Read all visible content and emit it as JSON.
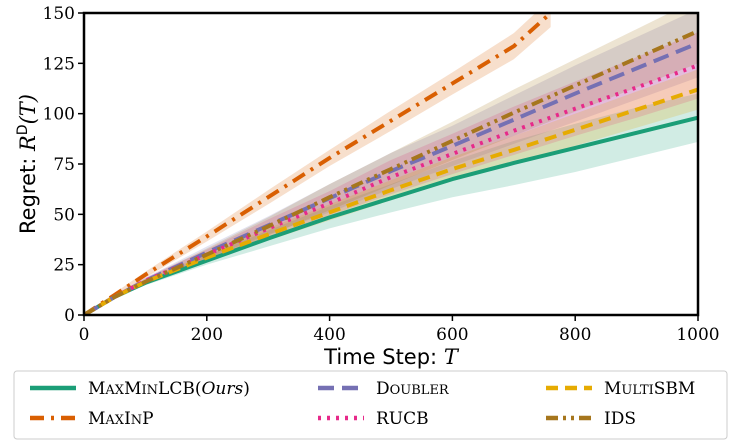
{
  "chart_data": {
    "type": "line",
    "title": "",
    "xlabel": "Time Step: ",
    "xlabel_var": "T",
    "ylabel": "Regret: ",
    "ylabel_var": "R^D(T)",
    "xlim": [
      0,
      1000
    ],
    "ylim": [
      0,
      150
    ],
    "xticks": [
      0,
      200,
      400,
      600,
      800,
      1000
    ],
    "yticks": [
      0,
      25,
      50,
      75,
      100,
      125,
      150
    ],
    "grid": false,
    "legend_position": "below",
    "series": [
      {
        "name": "MaxMinLCB(Ours)",
        "color": "#1b9e77",
        "dash": "solid",
        "x": [
          0,
          50,
          100,
          200,
          300,
          400,
          500,
          600,
          700,
          800,
          900,
          1000
        ],
        "y": [
          0,
          9,
          16,
          27,
          38,
          48.5,
          58,
          67.5,
          75.5,
          83,
          90.5,
          98
        ],
        "band": [
          [
            0,
            0
          ],
          [
            8.3,
            9.7
          ],
          [
            14.8,
            17.2
          ],
          [
            25,
            29.5
          ],
          [
            34,
            42
          ],
          [
            43,
            54
          ],
          [
            51,
            65
          ],
          [
            58.5,
            76.5
          ],
          [
            64.5,
            86.5
          ],
          [
            71,
            95
          ],
          [
            78.5,
            103
          ],
          [
            86,
            110
          ]
        ]
      },
      {
        "name": "MaxInP",
        "color": "#d95f02",
        "dash": "dashdot",
        "x": [
          0,
          50,
          100,
          200,
          300,
          400,
          500,
          600,
          700,
          760
        ],
        "y": [
          0,
          10,
          20,
          39,
          58.5,
          78,
          96.5,
          115,
          133.5,
          150
        ],
        "band": [
          [
            0,
            0
          ],
          [
            9,
            11
          ],
          [
            18.5,
            21.5
          ],
          [
            36.5,
            41.5
          ],
          [
            55,
            62
          ],
          [
            74,
            82
          ],
          [
            91.5,
            101.5
          ],
          [
            109.5,
            120.5
          ],
          [
            127,
            140
          ],
          [
            143,
            157
          ]
        ]
      },
      {
        "name": "Doubler",
        "color": "#7570b3",
        "dash": "longdash",
        "x": [
          0,
          50,
          100,
          200,
          300,
          400,
          500,
          600,
          700,
          800,
          900,
          1000
        ],
        "y": [
          0,
          9,
          17,
          31,
          44.5,
          58,
          71.5,
          84,
          97,
          110,
          122.5,
          135
        ],
        "band": [
          [
            0,
            0
          ],
          [
            8,
            10
          ],
          [
            15.5,
            18.5
          ],
          [
            28,
            34
          ],
          [
            40,
            49
          ],
          [
            51,
            65
          ],
          [
            62.5,
            80.5
          ],
          [
            74,
            94
          ],
          [
            85,
            109
          ],
          [
            96,
            124
          ],
          [
            107,
            138
          ],
          [
            118,
            152
          ]
        ]
      },
      {
        "name": "RUCB",
        "color": "#e7298a",
        "dash": "dotted",
        "x": [
          0,
          50,
          100,
          200,
          300,
          400,
          500,
          600,
          700,
          800,
          900,
          1000
        ],
        "y": [
          0,
          9,
          17,
          30,
          43,
          55.5,
          68.5,
          80,
          91.5,
          102.5,
          113,
          124
        ],
        "band": [
          [
            0,
            0
          ],
          [
            8,
            10
          ],
          [
            15.5,
            18.5
          ],
          [
            27.5,
            32.5
          ],
          [
            38.5,
            47.5
          ],
          [
            49.5,
            61.5
          ],
          [
            60,
            77
          ],
          [
            70,
            90
          ],
          [
            79.5,
            103.5
          ],
          [
            89,
            116
          ],
          [
            98,
            128
          ],
          [
            107.5,
            140.5
          ]
        ]
      },
      {
        "name": "MultiSBM",
        "color": "#e6ab02",
        "dash": "dashed",
        "x": [
          0,
          50,
          100,
          200,
          300,
          400,
          500,
          600,
          700,
          800,
          900,
          1000
        ],
        "y": [
          0,
          9,
          16.5,
          28.5,
          40,
          51,
          62,
          72.5,
          82,
          92,
          102,
          112
        ],
        "band": [
          [
            0,
            0
          ],
          [
            8.3,
            9.7
          ],
          [
            15.3,
            17.7
          ],
          [
            26.5,
            30.5
          ],
          [
            37,
            43
          ],
          [
            47,
            55
          ],
          [
            57,
            67
          ],
          [
            66.5,
            78.5
          ],
          [
            75,
            89
          ],
          [
            84,
            100
          ],
          [
            93,
            111
          ],
          [
            102,
            122
          ]
        ]
      },
      {
        "name": "IDS",
        "color": "#a6761d",
        "dash": "dashdotdot",
        "x": [
          0,
          50,
          100,
          200,
          300,
          400,
          500,
          600,
          700,
          800,
          900,
          1000
        ],
        "y": [
          0,
          9,
          16.5,
          30,
          44,
          58.5,
          72.5,
          86.5,
          100.5,
          114,
          127.5,
          141
        ],
        "band": [
          [
            0,
            0
          ],
          [
            8,
            10
          ],
          [
            15,
            18
          ],
          [
            27,
            33
          ],
          [
            39.5,
            48.5
          ],
          [
            52,
            65
          ],
          [
            64.5,
            80.5
          ],
          [
            77,
            96
          ],
          [
            89,
            112
          ],
          [
            101,
            127
          ],
          [
            113,
            142
          ],
          [
            125,
            157
          ]
        ]
      }
    ]
  }
}
